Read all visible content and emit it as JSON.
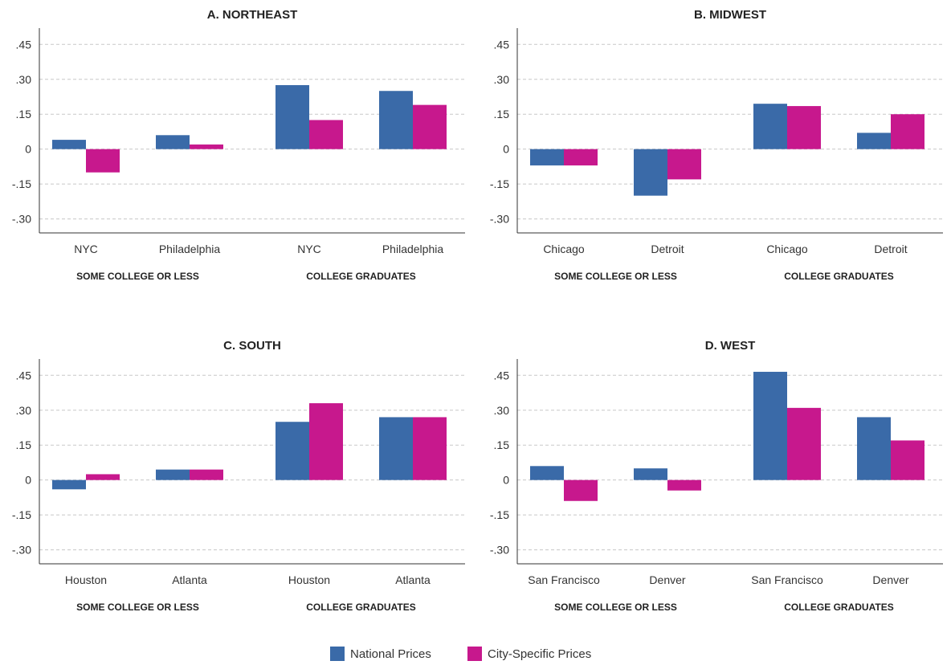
{
  "colors": {
    "national": "#3a6aa8",
    "city": "#c7188d",
    "grid": "#c8c8c8",
    "axis": "#333333"
  },
  "y_ticks": [
    ".45",
    ".30",
    ".15",
    "0",
    "-.15",
    "-.30"
  ],
  "group_labels": [
    "SOME COLLEGE OR LESS",
    "COLLEGE GRADUATES"
  ],
  "legend": {
    "national": "National Prices",
    "city": "City-Specific Prices"
  },
  "chart_data": [
    {
      "type": "bar",
      "title": "A. NORTHEAST",
      "categories": [
        "NYC",
        "Philadelphia",
        "NYC",
        "Philadelphia"
      ],
      "groups": [
        "SOME COLLEGE OR LESS",
        "COLLEGE GRADUATES"
      ],
      "ylim": [
        -0.36,
        0.52
      ],
      "series": [
        {
          "name": "National Prices",
          "values": [
            0.04,
            0.06,
            0.275,
            0.25
          ]
        },
        {
          "name": "City-Specific Prices",
          "values": [
            -0.1,
            0.02,
            0.125,
            0.19
          ]
        }
      ]
    },
    {
      "type": "bar",
      "title": "B. MIDWEST",
      "categories": [
        "Chicago",
        "Detroit",
        "Chicago",
        "Detroit"
      ],
      "groups": [
        "SOME COLLEGE OR LESS",
        "COLLEGE GRADUATES"
      ],
      "ylim": [
        -0.36,
        0.52
      ],
      "series": [
        {
          "name": "National Prices",
          "values": [
            -0.07,
            -0.2,
            0.195,
            0.07
          ]
        },
        {
          "name": "City-Specific Prices",
          "values": [
            -0.07,
            -0.13,
            0.185,
            0.15
          ]
        }
      ]
    },
    {
      "type": "bar",
      "title": "C. SOUTH",
      "categories": [
        "Houston",
        "Atlanta",
        "Houston",
        "Atlanta"
      ],
      "groups": [
        "SOME COLLEGE OR LESS",
        "COLLEGE GRADUATES"
      ],
      "ylim": [
        -0.36,
        0.52
      ],
      "series": [
        {
          "name": "National Prices",
          "values": [
            -0.04,
            0.045,
            0.25,
            0.27
          ]
        },
        {
          "name": "City-Specific Prices",
          "values": [
            0.025,
            0.045,
            0.33,
            0.27
          ]
        }
      ]
    },
    {
      "type": "bar",
      "title": "D. WEST",
      "categories": [
        "San Francisco",
        "Denver",
        "San Francisco",
        "Denver"
      ],
      "groups": [
        "SOME COLLEGE OR LESS",
        "COLLEGE GRADUATES"
      ],
      "ylim": [
        -0.36,
        0.52
      ],
      "series": [
        {
          "name": "National Prices",
          "values": [
            0.06,
            0.05,
            0.465,
            0.27
          ]
        },
        {
          "name": "City-Specific Prices",
          "values": [
            -0.09,
            -0.045,
            0.31,
            0.17
          ]
        }
      ]
    }
  ]
}
